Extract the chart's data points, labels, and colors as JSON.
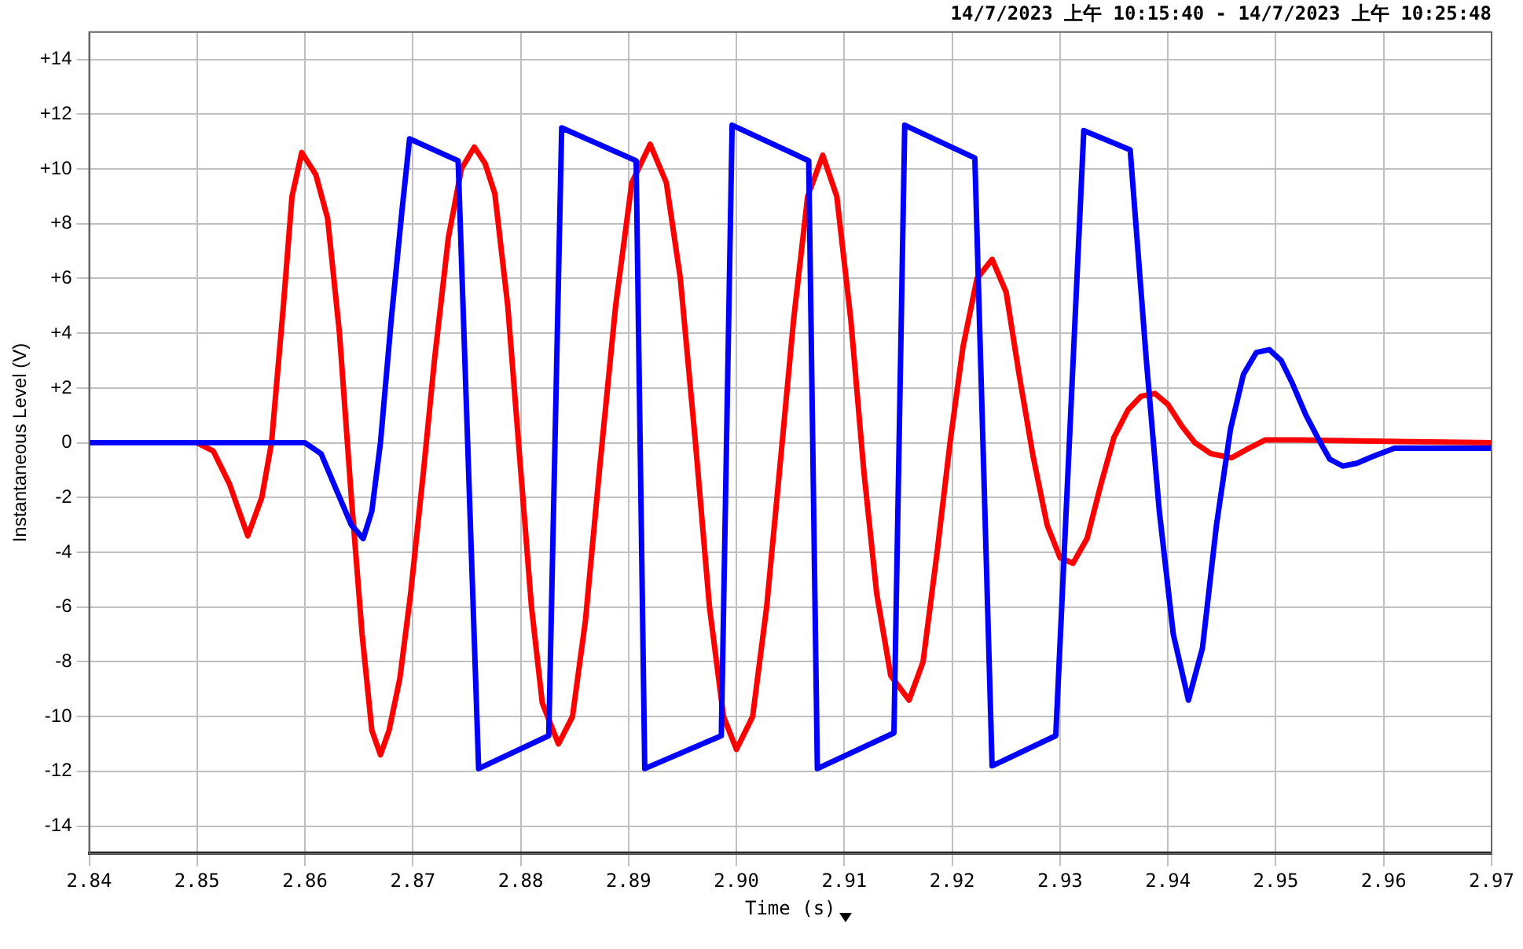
{
  "chart_data": {
    "type": "line",
    "title": "14/7/2023 上午 10:15:40 - 14/7/2023 上午 10:25:48",
    "xlabel": "Time (s)",
    "ylabel": "Instantaneous Level (V)",
    "xlim": [
      2.84,
      2.97
    ],
    "xticks": [
      2.84,
      2.85,
      2.86,
      2.87,
      2.88,
      2.89,
      {
        "value": 2.9,
        "label": "2.90"
      },
      2.91,
      2.92,
      2.93,
      2.94,
      2.95,
      2.96,
      2.97
    ],
    "ylim": [
      -15,
      15
    ],
    "yticks": [
      {
        "value": 14,
        "label": "+14"
      },
      {
        "value": 12,
        "label": "+12"
      },
      {
        "value": 10,
        "label": "+10"
      },
      {
        "value": 8,
        "label": "+8"
      },
      {
        "value": 6,
        "label": "+6"
      },
      {
        "value": 4,
        "label": "+4"
      },
      {
        "value": 2,
        "label": "+2"
      },
      0,
      -2,
      -4,
      -6,
      -8,
      -10,
      -12,
      -14
    ],
    "grid": true,
    "legend": false,
    "marker": "none",
    "line_style": "solid",
    "series": [
      {
        "color": "#0000ff",
        "x": [
          2.84,
          2.85,
          2.86,
          2.8615,
          2.863,
          2.8643,
          2.8654,
          2.8662,
          2.867,
          2.868,
          2.869,
          2.8697,
          2.8742,
          2.8761,
          2.8826,
          2.8838,
          2.8907,
          2.8915,
          2.8986,
          2.8996,
          2.9067,
          2.9075,
          2.9146,
          2.9156,
          2.9221,
          2.9237,
          2.9296,
          2.9322,
          2.9365,
          2.938,
          2.9392,
          2.9405,
          2.9419,
          2.9432,
          2.9445,
          2.9458,
          2.947,
          2.9482,
          2.9494,
          2.9505,
          2.9515,
          2.9528,
          2.954,
          2.955,
          2.9562,
          2.9575,
          2.959,
          2.961,
          2.97
        ],
        "values": [
          0,
          0,
          0,
          -0.4,
          -1.8,
          -3,
          -3.5,
          -2.5,
          0,
          4.5,
          8.5,
          11.1,
          10.3,
          -11.9,
          -10.7,
          11.5,
          10.3,
          -11.9,
          -10.7,
          11.6,
          10.3,
          -11.9,
          -10.6,
          11.6,
          10.4,
          -11.8,
          -10.7,
          11.4,
          10.7,
          3,
          -2.5,
          -7,
          -9.4,
          -7.5,
          -3,
          0.5,
          2.5,
          3.3,
          3.4,
          3,
          2.2,
          1,
          0.1,
          -0.6,
          -0.85,
          -0.75,
          -0.5,
          -0.2,
          -0.2
        ]
      },
      {
        "color": "#ff0000",
        "x": [
          2.84,
          2.85,
          2.8515,
          2.853,
          2.8547,
          2.856,
          2.8569,
          2.858,
          2.8588,
          2.8597,
          2.861,
          2.8621,
          2.8632,
          2.8643,
          2.8653,
          2.8662,
          2.867,
          2.8678,
          2.8688,
          2.8698,
          2.871,
          2.872,
          2.8733,
          2.8745,
          2.8757,
          2.8767,
          2.8776,
          2.8788,
          2.88,
          2.881,
          2.882,
          2.8835,
          2.8848,
          2.886,
          2.8873,
          2.8888,
          2.8903,
          2.892,
          2.8935,
          2.8948,
          2.8962,
          2.8975,
          2.8988,
          2.9,
          2.9015,
          2.9028,
          2.904,
          2.9053,
          2.9066,
          2.908,
          2.9093,
          2.9106,
          2.9118,
          2.913,
          2.9143,
          2.916,
          2.9173,
          2.9186,
          2.9198,
          2.921,
          2.9223,
          2.9237,
          2.925,
          2.9262,
          2.9275,
          2.9288,
          2.93,
          2.9312,
          2.9325,
          2.9338,
          2.935,
          2.9363,
          2.9375,
          2.9388,
          2.94,
          2.9413,
          2.9425,
          2.944,
          2.9459,
          2.9475,
          2.949,
          2.952,
          2.97
        ],
        "values": [
          0,
          0,
          -0.3,
          -1.5,
          -3.4,
          -2,
          0,
          5,
          9,
          10.6,
          9.8,
          8.2,
          4,
          -2,
          -7,
          -10.5,
          -11.4,
          -10.5,
          -8.6,
          -5.5,
          -1,
          3,
          7.5,
          10,
          10.8,
          10.2,
          9.1,
          5,
          -1,
          -6,
          -9.5,
          -11,
          -10,
          -6.5,
          -1,
          5,
          9.5,
          10.9,
          9.5,
          6,
          0,
          -6,
          -10,
          -11.2,
          -10,
          -6,
          -1,
          4.5,
          9,
          10.5,
          9,
          4.5,
          -1,
          -5.5,
          -8.5,
          -9.4,
          -8,
          -4,
          0,
          3.5,
          6,
          6.7,
          5.5,
          2.5,
          -0.5,
          -3,
          -4.2,
          -4.4,
          -3.5,
          -1.5,
          0.2,
          1.2,
          1.7,
          1.8,
          1.4,
          0.6,
          0,
          -0.4,
          -0.55,
          -0.2,
          0.1,
          0.1,
          0
        ]
      }
    ]
  }
}
